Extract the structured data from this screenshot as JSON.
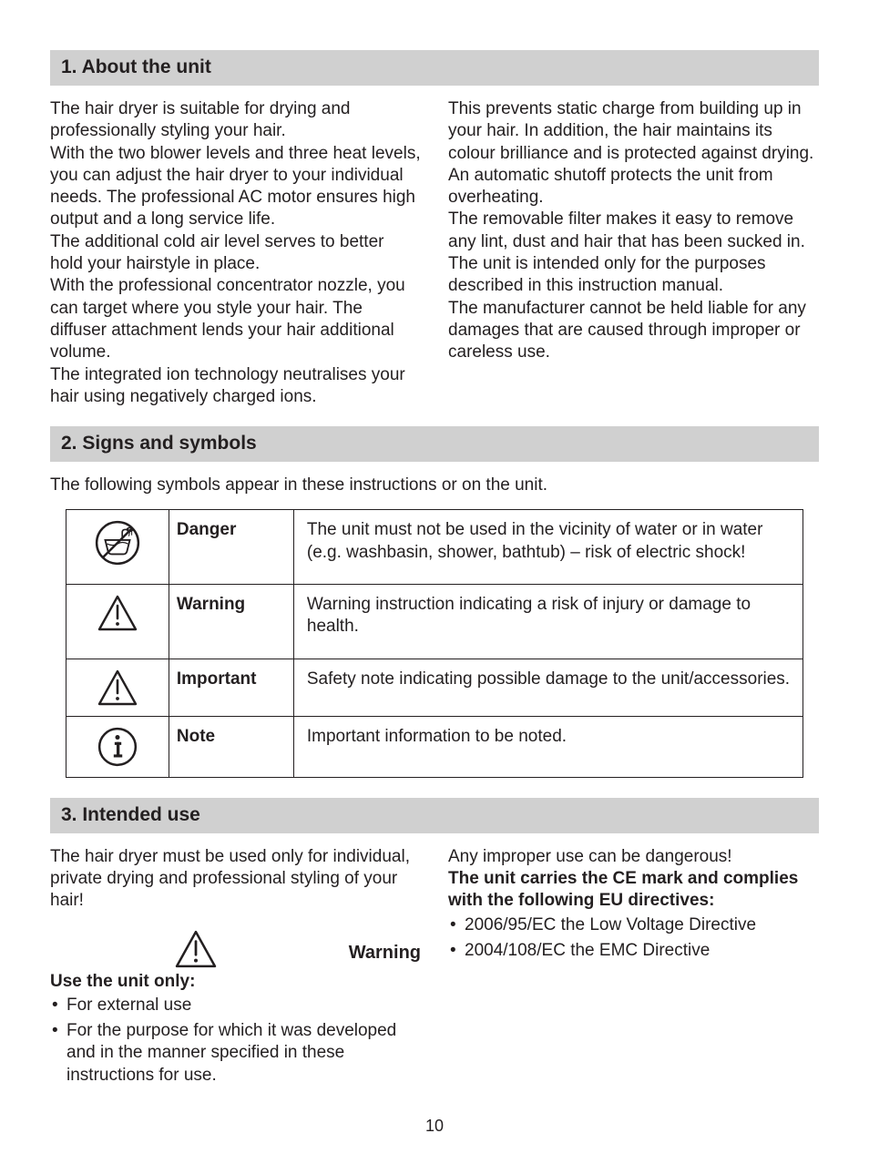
{
  "section1": {
    "header": "1. About the unit",
    "col1": "The hair dryer is suitable for drying and professionally styling your hair.\nWith the two blower levels and three heat levels, you can adjust the hair dryer to your individual needs. The professional AC motor ensures high output and a long service life.\nThe additional cold air level serves to better hold your hairstyle in place.\nWith the professional concentrator nozzle, you can target where you style your hair. The diffuser attachment lends your hair additional volume.\nThe integrated ion technology neutralises your hair using negatively charged ions.",
    "col2": "This prevents static charge from building up in your hair. In addition, the hair maintains its colour brilliance and is protected against drying.\nAn automatic shutoff protects the unit from overheating.\nThe removable filter makes it easy to remove any lint, dust and hair that has been sucked in.\nThe unit is intended only for the purposes described in this instruction manual.\nThe manufacturer cannot be held liable for any damages that are caused through improper or careless use."
  },
  "section2": {
    "header": "2. Signs and symbols",
    "intro": "The following symbols appear in these instructions or on the unit.",
    "rows": [
      {
        "icon": "no-water",
        "label": "Danger",
        "desc": "The unit must not be used in the vicinity of water or in water (e.g. washbasin, shower, bathtub) – risk of electric shock!"
      },
      {
        "icon": "triangle",
        "label": "Warning",
        "desc": "Warning instruction indicating a risk of injury or damage to health."
      },
      {
        "icon": "triangle",
        "label": "Important",
        "desc": "Safety note indicating possible damage to the unit/accessories."
      },
      {
        "icon": "info",
        "label": "Note",
        "desc": "Important information to be noted."
      }
    ]
  },
  "section3": {
    "header": "3. Intended use",
    "col1_intro": "The hair dryer must be used only for individual, private drying and professional styling of your hair!",
    "warning_label": "Warning",
    "use_only_heading": "Use the unit only:",
    "use_only_items": [
      "For external use",
      "For the purpose for which it was developed and in the manner specified in these instructions for use."
    ],
    "col2_line1": "Any improper use can be dangerous!",
    "col2_bold": "The unit carries the CE mark and complies with the following EU directives:",
    "directives": [
      "2006/95/EC the Low Voltage Directive",
      "2004/108/EC the EMC Directive"
    ]
  },
  "page_number": "10",
  "style": {
    "header_bg": "#d0d0d0",
    "text_color": "#231f20",
    "border_color": "#231f20",
    "font_size_body": 19,
    "font_size_header": 21
  }
}
